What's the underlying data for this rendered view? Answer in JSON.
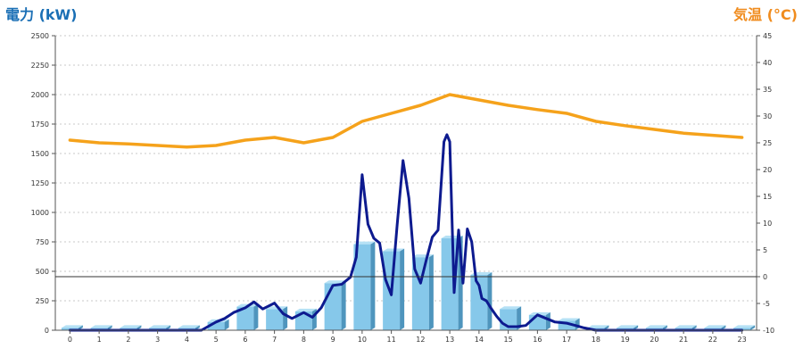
{
  "chart_data": {
    "type": "bar",
    "y_left_label": "電力 (kW)",
    "y_right_label": "気温 (°C)",
    "ylim_left": [
      0,
      2500
    ],
    "ylim_right": [
      -10,
      45
    ],
    "y_left_ticks": [
      "0",
      "250",
      "500",
      "750",
      "1000",
      "1250",
      "1500",
      "1750",
      "2000",
      "2250",
      "2500"
    ],
    "y_right_ticks": [
      "-10",
      "-5",
      "0",
      "5",
      "10",
      "15",
      "20",
      "25",
      "30",
      "35",
      "40",
      "45"
    ],
    "categories": [
      "0",
      "1",
      "2",
      "3",
      "4",
      "5",
      "6",
      "7",
      "8",
      "9",
      "10",
      "11",
      "12",
      "13",
      "14",
      "15",
      "16",
      "17",
      "18",
      "19",
      "20",
      "21",
      "22",
      "23"
    ],
    "grid": true,
    "series": [
      {
        "kind": "bar",
        "axis": "left",
        "values": [
          20,
          20,
          20,
          20,
          20,
          70,
          200,
          180,
          160,
          400,
          730,
          670,
          620,
          780,
          470,
          180,
          130,
          80,
          20,
          20,
          20,
          20,
          20,
          20
        ]
      },
      {
        "kind": "line",
        "axis": "right",
        "x": [
          0,
          1,
          2,
          3,
          4,
          5,
          6,
          7,
          8,
          9,
          10,
          11,
          12,
          13,
          14,
          15,
          16,
          17,
          18,
          19,
          20,
          21,
          22,
          23
        ],
        "values": [
          25.5,
          25,
          24.8,
          24.5,
          24.2,
          24.5,
          25.5,
          26,
          25,
          26,
          29,
          30.5,
          32,
          34,
          33,
          32,
          31.2,
          30.5,
          29,
          28.2,
          27.5,
          26.8,
          26.4,
          26
        ]
      },
      {
        "kind": "line",
        "axis": "left",
        "x": [
          0,
          1,
          2,
          3,
          4,
          4.5,
          5,
          5.3,
          5.6,
          6,
          6.3,
          6.6,
          7,
          7.3,
          7.6,
          8,
          8.3,
          8.6,
          9,
          9.3,
          9.6,
          9.8,
          10,
          10.2,
          10.4,
          10.6,
          10.8,
          11,
          11.2,
          11.4,
          11.6,
          11.8,
          12,
          12.2,
          12.4,
          12.6,
          12.8,
          12.9,
          13,
          13.15,
          13.3,
          13.45,
          13.6,
          13.75,
          13.9,
          14,
          14.1,
          14.25,
          14.4,
          14.6,
          14.8,
          15,
          15.3,
          15.6,
          16,
          16.3,
          16.6,
          17,
          17.3,
          17.6,
          18,
          18.5,
          19,
          20,
          21,
          22,
          23
        ],
        "values": [
          0,
          0,
          0,
          0,
          0,
          0,
          70,
          100,
          150,
          190,
          240,
          180,
          230,
          140,
          100,
          150,
          110,
          190,
          380,
          390,
          450,
          620,
          1320,
          900,
          780,
          740,
          430,
          300,
          900,
          1440,
          1120,
          520,
          400,
          600,
          790,
          850,
          1600,
          1660,
          1600,
          320,
          850,
          400,
          860,
          750,
          420,
          380,
          270,
          250,
          190,
          120,
          60,
          30,
          30,
          40,
          130,
          100,
          70,
          60,
          40,
          20,
          0,
          0,
          0,
          0,
          0,
          0,
          0
        ]
      }
    ]
  }
}
